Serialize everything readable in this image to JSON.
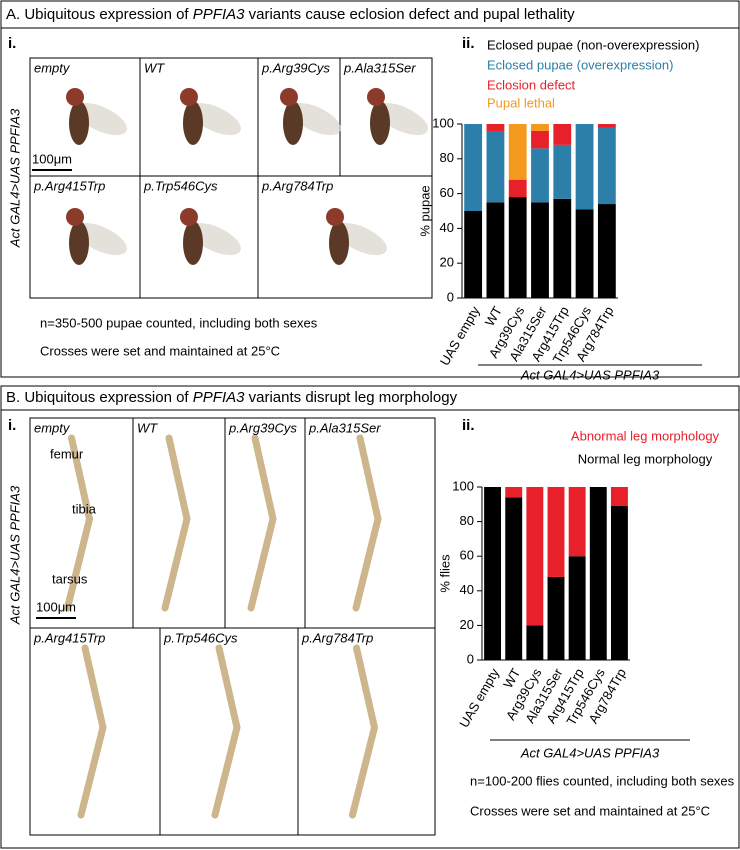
{
  "panels": [
    {
      "title_parts": [
        "A. Ubiquitous expression of ",
        "PPFIA3",
        " variants cause eclosion defect and pupal lethality"
      ],
      "label_i": "i.",
      "label_ii": "ii.",
      "side_label": "Act GAL4>UAS PPFIA3",
      "photo_labels": [
        "empty",
        "WT",
        "p.Arg39Cys",
        "p.Ala315Ser",
        "p.Arg415Trp",
        "p.Trp546Cys",
        "p.Arg784Trp"
      ],
      "scale_bar": "100μm",
      "notes": [
        "n=350-500 pupae counted, including both sexes",
        "Crosses were set and maintained at 25°C"
      ]
    },
    {
      "title_parts": [
        "B. Ubiquitous expression of ",
        "PPFIA3",
        " variants disrupt leg morphology"
      ],
      "label_i": "i.",
      "label_ii": "ii.",
      "side_label": "Act GAL4>UAS PPFIA3",
      "photo_labels": [
        "empty",
        "WT",
        "p.Arg39Cys",
        "p.Ala315Ser",
        "p.Arg415Trp",
        "p.Trp546Cys",
        "p.Arg784Trp"
      ],
      "leg_parts": [
        "femur",
        "tibia",
        "tarsus"
      ],
      "scale_bar": "100μm",
      "notes": [
        "n=100-200 flies counted, including both sexes",
        "Crosses were set and maintained at 25°C"
      ]
    }
  ],
  "chart_data": [
    {
      "type": "stacked_bar",
      "ylabel": "% pupae",
      "xlabel": "Act GAL4>UAS PPFIA3",
      "categories": [
        "UAS empty",
        "WT",
        "Arg39Cys",
        "Ala315Ser",
        "Arg415Trp",
        "Trp546Cys",
        "Arg784Trp"
      ],
      "series": [
        {
          "name": "Eclosed pupae (non-overexpression)",
          "color": "#000000",
          "values": [
            50,
            55,
            58,
            55,
            57,
            51,
            54
          ]
        },
        {
          "name": "Eclosed pupae (overexpression)",
          "color": "#2b7fa8",
          "values": [
            50,
            41,
            0,
            31,
            31,
            49,
            44
          ]
        },
        {
          "name": "Eclosion defect",
          "color": "#e8202a",
          "values": [
            0,
            4,
            10,
            10,
            12,
            0,
            2
          ]
        },
        {
          "name": "Pupal lethal",
          "color": "#f39a1e",
          "values": [
            0,
            0,
            32,
            4,
            0,
            0,
            0
          ]
        }
      ],
      "ylim": [
        0,
        100
      ],
      "yticks": [
        0,
        20,
        40,
        60,
        80,
        100
      ]
    },
    {
      "type": "stacked_bar",
      "ylabel": "% flies",
      "xlabel": "Act GAL4>UAS PPFIA3",
      "categories": [
        "UAS empty",
        "WT",
        "Arg39Cys",
        "Ala315Ser",
        "Arg415Trp",
        "Trp546Cys",
        "Arg784Trp"
      ],
      "series": [
        {
          "name": "Normal leg morphology",
          "color": "#000000",
          "values": [
            100,
            94,
            20,
            48,
            60,
            100,
            89
          ]
        },
        {
          "name": "Abnormal leg morphology",
          "color": "#e8202a",
          "values": [
            0,
            6,
            80,
            52,
            40,
            0,
            11
          ]
        }
      ],
      "ylim": [
        0,
        100
      ],
      "yticks": [
        0,
        20,
        40,
        60,
        80,
        100
      ]
    }
  ]
}
